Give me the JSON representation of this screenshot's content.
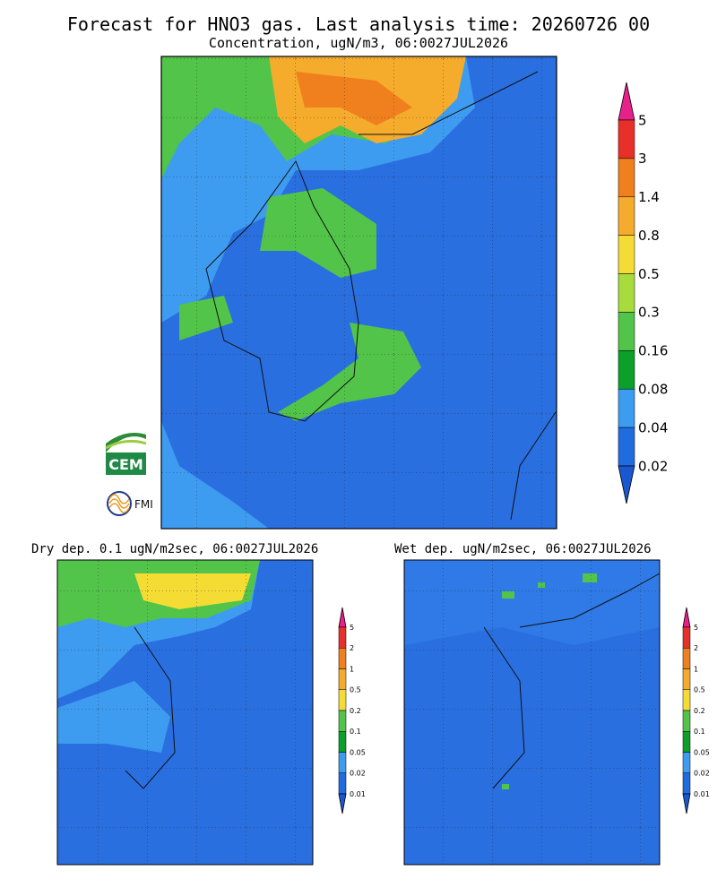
{
  "header": {
    "title": "Forecast for HNO3 gas. Last analysis time: 20260726 00",
    "subtitle": "Concentration, ugN/m3, 06:0027JUL2026"
  },
  "panels": [
    {
      "title": "Dry dep. 0.1 ugN/m2sec, 06:0027JUL2026"
    },
    {
      "title": "Wet dep. ugN/m2sec, 06:0027JUL2026"
    }
  ],
  "main_colorbar": {
    "labels": [
      "5",
      "3",
      "1.4",
      "0.8",
      "0.5",
      "0.3",
      "0.16",
      "0.08",
      "0.04",
      "0.02"
    ],
    "colors": [
      "#e8208a",
      "#e8302a",
      "#f0801e",
      "#f5ab2c",
      "#f5dc34",
      "#a8dc3c",
      "#52c44a",
      "#0aa02a",
      "#3c9cf0",
      "#1f6ce0",
      "#1a58d0"
    ]
  },
  "small_colorbar": {
    "labels": [
      "5",
      "2",
      "1",
      "0.5",
      "0.2",
      "0.1",
      "0.05",
      "0.02",
      "0.01"
    ],
    "colors": [
      "#e8208a",
      "#e8302a",
      "#f0801e",
      "#f5ab2c",
      "#f5dc34",
      "#52c44a",
      "#0aa02a",
      "#3c9cf0",
      "#1f6ce0",
      "#1a58d0"
    ]
  },
  "logos": {
    "cem": "CEM",
    "fmi": "FMI"
  }
}
